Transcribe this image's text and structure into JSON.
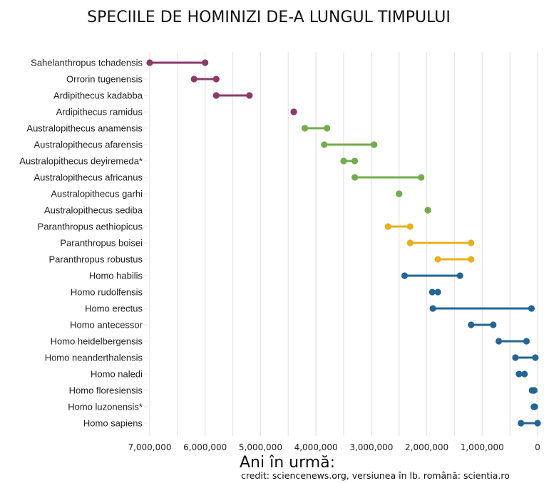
{
  "chart_data": {
    "type": "dumbbell",
    "title": "SPECIILE DE HOMINIZI DE-A LUNGUL TIMPULUI",
    "xlabel": "Ani în urmă:",
    "ylabel": "",
    "credit": "credit: sciencenews.org, versiunea în lb. română: scientia.ro",
    "xlim": [
      7000000,
      0
    ],
    "x_reversed": true,
    "grid": true,
    "x_ticks": [
      7000000,
      6000000,
      5000000,
      4000000,
      3000000,
      2000000,
      1000000,
      0
    ],
    "x_tick_labels": [
      "7,000,000",
      "6,000,000",
      "5,000,000",
      "4,000,000",
      "3,000,000",
      "2,000,000",
      "1,000,000",
      "0"
    ],
    "group_colors": {
      "early": "#8B3A6B",
      "australopithecus": "#72AC4D",
      "paranthropus": "#E8B020",
      "homo": "#236594"
    },
    "series": [
      {
        "name": "Sahelanthropus tchadensis",
        "group": "early",
        "start": 7000000,
        "end": 6000000
      },
      {
        "name": "Orrorin tugenensis",
        "group": "early",
        "start": 6200000,
        "end": 5800000
      },
      {
        "name": "Ardipithecus kadabba",
        "group": "early",
        "start": 5800000,
        "end": 5200000
      },
      {
        "name": "Ardipithecus ramidus",
        "group": "early",
        "start": 4400000,
        "end": 4400000
      },
      {
        "name": "Australopithecus anamensis",
        "group": "australopithecus",
        "start": 4200000,
        "end": 3800000
      },
      {
        "name": "Australopithecus afarensis",
        "group": "australopithecus",
        "start": 3850000,
        "end": 2950000
      },
      {
        "name": "Australopithecus deyiremeda*",
        "group": "australopithecus",
        "start": 3500000,
        "end": 3300000
      },
      {
        "name": "Australopithecus africanus",
        "group": "australopithecus",
        "start": 3300000,
        "end": 2100000
      },
      {
        "name": "Australopithecus garhi",
        "group": "australopithecus",
        "start": 2500000,
        "end": 2500000
      },
      {
        "name": "Australopithecus sediba",
        "group": "australopithecus",
        "start": 1980000,
        "end": 1980000
      },
      {
        "name": "Paranthropus aethiopicus",
        "group": "paranthropus",
        "start": 2700000,
        "end": 2300000
      },
      {
        "name": "Paranthropus boisei",
        "group": "paranthropus",
        "start": 2300000,
        "end": 1200000
      },
      {
        "name": "Paranthropus robustus",
        "group": "paranthropus",
        "start": 1800000,
        "end": 1200000
      },
      {
        "name": "Homo habilis",
        "group": "homo",
        "start": 2400000,
        "end": 1400000
      },
      {
        "name": "Homo rudolfensis",
        "group": "homo",
        "start": 1900000,
        "end": 1800000
      },
      {
        "name": "Homo erectus",
        "group": "homo",
        "start": 1890000,
        "end": 110000
      },
      {
        "name": "Homo antecessor",
        "group": "homo",
        "start": 1200000,
        "end": 800000
      },
      {
        "name": "Homo heidelbergensis",
        "group": "homo",
        "start": 700000,
        "end": 200000
      },
      {
        "name": "Homo neanderthalensis",
        "group": "homo",
        "start": 400000,
        "end": 40000
      },
      {
        "name": "Homo naledi",
        "group": "homo",
        "start": 335000,
        "end": 236000
      },
      {
        "name": "Homo floresiensis",
        "group": "homo",
        "start": 100000,
        "end": 60000
      },
      {
        "name": "Homo luzonensis*",
        "group": "homo",
        "start": 67000,
        "end": 50000
      },
      {
        "name": "Homo sapiens",
        "group": "homo",
        "start": 300000,
        "end": 0
      }
    ]
  }
}
